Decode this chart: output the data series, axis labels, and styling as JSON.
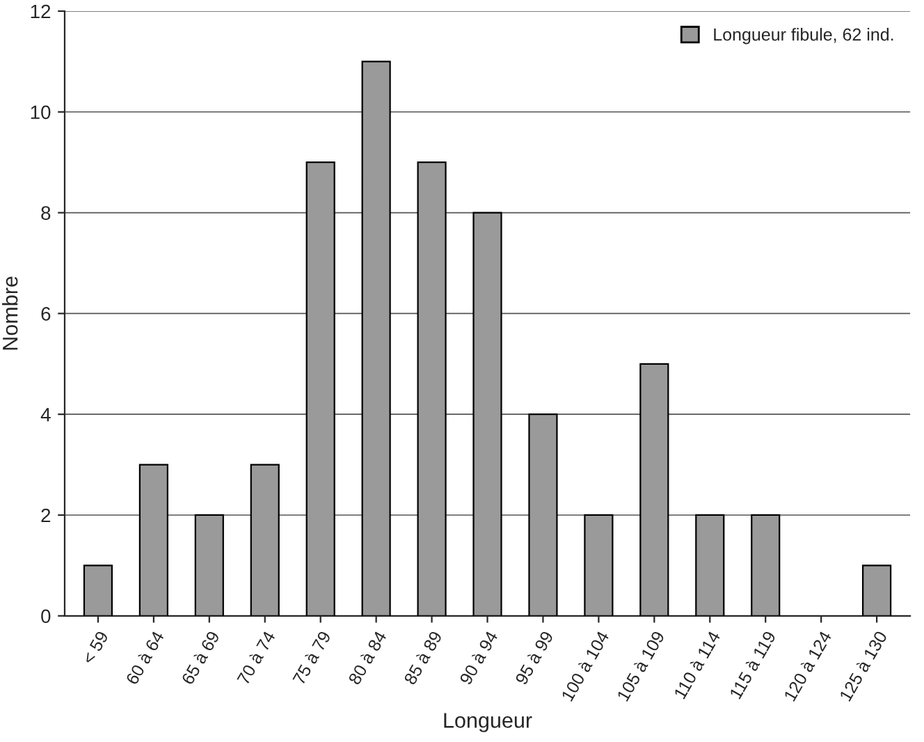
{
  "chart_data": {
    "type": "bar",
    "xlabel": "Longueur",
    "ylabel": "Nombre",
    "categories": [
      "< 59",
      "60 à 64",
      "65 à 69",
      "70 à 74",
      "75 à 79",
      "80 à 84",
      "85 à 89",
      "90 à 94",
      "95 à 99",
      "100 à 104",
      "105 à 109",
      "110 à 114",
      "115 à 119",
      "120 à 124",
      "125 à 130"
    ],
    "series": [
      {
        "name": "Longueur fibule, 62 ind.",
        "color": "#9a9a9a",
        "values": [
          1,
          3,
          2,
          3,
          9,
          11,
          9,
          8,
          4,
          2,
          5,
          2,
          2,
          0,
          1
        ]
      }
    ],
    "ylim": [
      0,
      12
    ],
    "yticks": [
      0,
      2,
      4,
      6,
      8,
      10,
      12
    ],
    "grid": "y",
    "legend": "top right"
  }
}
